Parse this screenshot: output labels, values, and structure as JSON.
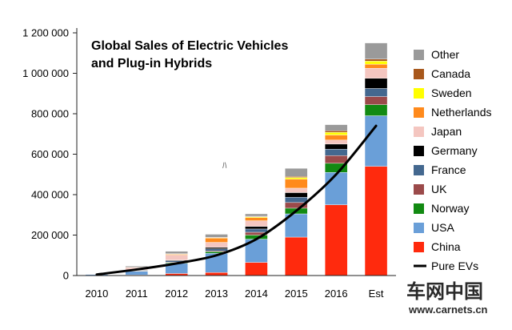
{
  "chart_data": {
    "type": "bar",
    "stacked": true,
    "title_lines": [
      "Global Sales of Electric Vehicles",
      "and Plug-in Hybrids"
    ],
    "categories": [
      "2010",
      "2011",
      "2012",
      "2013",
      "2014",
      "2015",
      "2016",
      "Est"
    ],
    "ylim": [
      0,
      1200000
    ],
    "yticks": [
      0,
      200000,
      400000,
      600000,
      800000,
      1000000,
      1200000
    ],
    "ytick_labels": [
      "0",
      "200 000",
      "400 000",
      "600 000",
      "800 000",
      "1 000 000",
      "1 200 000"
    ],
    "grid": false,
    "legend_position": "right",
    "series": [
      {
        "name": "China",
        "color": "#ff2a0d",
        "values": [
          0,
          3000,
          10000,
          15000,
          65000,
          190000,
          350000,
          540000
        ]
      },
      {
        "name": "USA",
        "color": "#6a9fd8",
        "values": [
          5000,
          18000,
          50000,
          95000,
          115000,
          115000,
          160000,
          250000
        ]
      },
      {
        "name": "Norway",
        "color": "#128a12",
        "values": [
          0,
          2000,
          4000,
          8000,
          20000,
          28000,
          45000,
          55000
        ]
      },
      {
        "name": "UK",
        "color": "#9b4a4a",
        "values": [
          0,
          1000,
          2000,
          4000,
          14000,
          28000,
          38000,
          40000
        ]
      },
      {
        "name": "France",
        "color": "#44688f",
        "values": [
          0,
          2000,
          7000,
          10000,
          16000,
          26000,
          32000,
          40000
        ]
      },
      {
        "name": "Germany",
        "color": "#000000",
        "values": [
          0,
          2000,
          3000,
          7000,
          13000,
          23000,
          25000,
          50000
        ]
      },
      {
        "name": "Japan",
        "color": "#f4c6c0",
        "values": [
          0,
          12000,
          25000,
          25000,
          28000,
          22000,
          20000,
          50000
        ]
      },
      {
        "name": "Netherlands",
        "color": "#ff8a1c",
        "values": [
          0,
          1000,
          5000,
          22000,
          15000,
          45000,
          25000,
          20000
        ]
      },
      {
        "name": "Sweden",
        "color": "#ffff00",
        "values": [
          0,
          0,
          1000,
          1000,
          4000,
          8000,
          13000,
          15000
        ]
      },
      {
        "name": "Canada",
        "color": "#a8581c",
        "values": [
          0,
          500,
          1000,
          2000,
          3000,
          5000,
          8000,
          10000
        ]
      },
      {
        "name": "Other",
        "color": "#9a9a9a",
        "values": [
          0,
          5000,
          12000,
          15000,
          12000,
          40000,
          30000,
          80000
        ]
      }
    ],
    "line_series": {
      "name": "Pure EVs",
      "color": "#000000",
      "values": [
        5000,
        30000,
        60000,
        100000,
        180000,
        320000,
        500000,
        740000
      ]
    },
    "annotations": [
      "ﾊ"
    ]
  },
  "watermark": {
    "name_text": "车网中国",
    "url_text": "www.carnets.cn"
  }
}
